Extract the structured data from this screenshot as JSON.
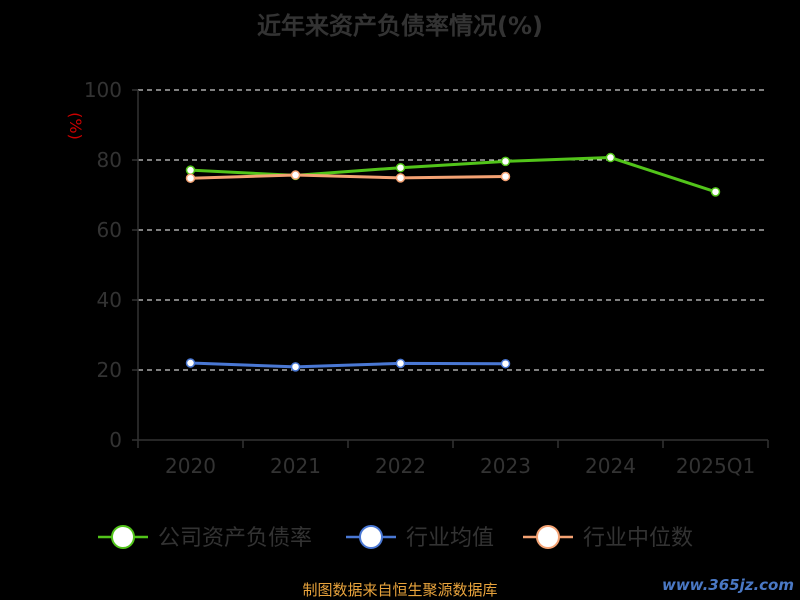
{
  "chart_data": {
    "type": "line",
    "title": "近年来资产负债率情况(%)",
    "ylabel": "(%)",
    "categories": [
      "2020",
      "2021",
      "2022",
      "2023",
      "2024",
      "2025Q1"
    ],
    "ylim": [
      0,
      100
    ],
    "yticks": [
      "0",
      "20",
      "40",
      "60",
      "80",
      "100"
    ],
    "grid": "dashed horizontal",
    "legend_position": "bottom",
    "series": [
      {
        "name": "公司资产负债率",
        "color": "#52c41a",
        "values": [
          77.1,
          75.6,
          77.8,
          79.6,
          80.7,
          70.9
        ]
      },
      {
        "name": "行业均值",
        "color": "#4a78d4",
        "values": [
          22.0,
          20.9,
          21.9,
          21.8,
          null,
          null
        ]
      },
      {
        "name": "行业中位数",
        "color": "#f4a273",
        "values": [
          74.8,
          75.7,
          74.9,
          75.3,
          null,
          null
        ]
      }
    ]
  },
  "footer": {
    "source": "制图数据来自恒生聚源数据库",
    "watermark": "www.365jz.com"
  }
}
